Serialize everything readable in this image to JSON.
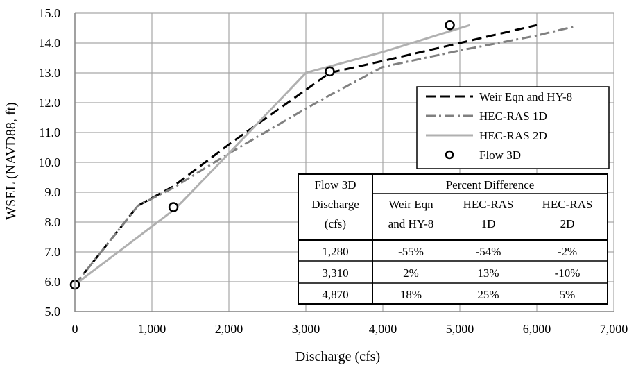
{
  "chart_data": {
    "type": "line",
    "xlabel": "Discharge (cfs)",
    "ylabel": "WSEL (NAVD88, ft)",
    "xlim": [
      0,
      7000
    ],
    "ylim": [
      5.0,
      15.0
    ],
    "x_ticks": [
      0,
      1000,
      2000,
      3000,
      4000,
      5000,
      6000,
      7000
    ],
    "x_tick_labels": [
      "0",
      "1,000",
      "2,000",
      "3,000",
      "4,000",
      "5,000",
      "6,000",
      "7,000"
    ],
    "y_ticks": [
      5,
      6,
      7,
      8,
      9,
      10,
      11,
      12,
      13,
      14,
      15
    ],
    "y_tick_labels": [
      "5.0",
      "6.0",
      "7.0",
      "8.0",
      "9.0",
      "10.0",
      "11.0",
      "12.0",
      "13.0",
      "14.0",
      "15.0"
    ],
    "grid": true,
    "legend_position": "right",
    "series": [
      {
        "name": "Weir Eqn and HY-8",
        "style": "dashed",
        "color": "#000000",
        "points": [
          [
            0,
            5.9
          ],
          [
            820,
            8.55
          ],
          [
            1280,
            9.2
          ],
          [
            2000,
            10.6
          ],
          [
            3310,
            13.0
          ],
          [
            4000,
            13.4
          ],
          [
            5000,
            14.0
          ],
          [
            6000,
            14.6
          ]
        ]
      },
      {
        "name": "HEC-RAS 1D",
        "style": "dashdot",
        "color": "#808080",
        "points": [
          [
            0,
            5.9
          ],
          [
            820,
            8.55
          ],
          [
            1280,
            9.15
          ],
          [
            2000,
            10.3
          ],
          [
            3000,
            11.8
          ],
          [
            3310,
            12.25
          ],
          [
            4000,
            13.2
          ],
          [
            5000,
            13.75
          ],
          [
            6000,
            14.25
          ],
          [
            6480,
            14.55
          ]
        ]
      },
      {
        "name": "HEC-RAS 2D",
        "style": "solid",
        "color": "#b0b0b0",
        "points": [
          [
            0,
            5.9
          ],
          [
            1280,
            8.4
          ],
          [
            1400,
            8.7
          ],
          [
            2000,
            10.3
          ],
          [
            3000,
            13.0
          ],
          [
            4000,
            13.7
          ],
          [
            5130,
            14.6
          ]
        ]
      },
      {
        "name": "Flow 3D",
        "style": "marker",
        "color": "#000000",
        "points": [
          [
            0,
            5.9
          ],
          [
            1280,
            8.5
          ],
          [
            3310,
            13.05
          ],
          [
            4870,
            14.6
          ]
        ]
      }
    ],
    "table": {
      "header_col1": [
        "Flow 3D",
        "Discharge",
        "(cfs)"
      ],
      "header_group": "Percent Difference",
      "subheaders": [
        [
          "Weir Eqn",
          "and HY-8"
        ],
        [
          "HEC-RAS",
          "1D"
        ],
        [
          "HEC-RAS",
          "2D"
        ]
      ],
      "rows": [
        [
          "1,280",
          "-55%",
          "-54%",
          "-2%"
        ],
        [
          "3,310",
          "2%",
          "13%",
          "-10%"
        ],
        [
          "4,870",
          "18%",
          "25%",
          "5%"
        ]
      ]
    }
  }
}
